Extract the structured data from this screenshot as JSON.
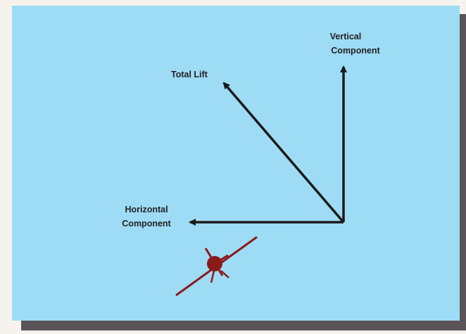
{
  "labels": {
    "total_lift": "Total Lift",
    "vertical": [
      "Vertical",
      "Component"
    ],
    "horizontal": [
      "Horizontal",
      "Component"
    ]
  }
}
